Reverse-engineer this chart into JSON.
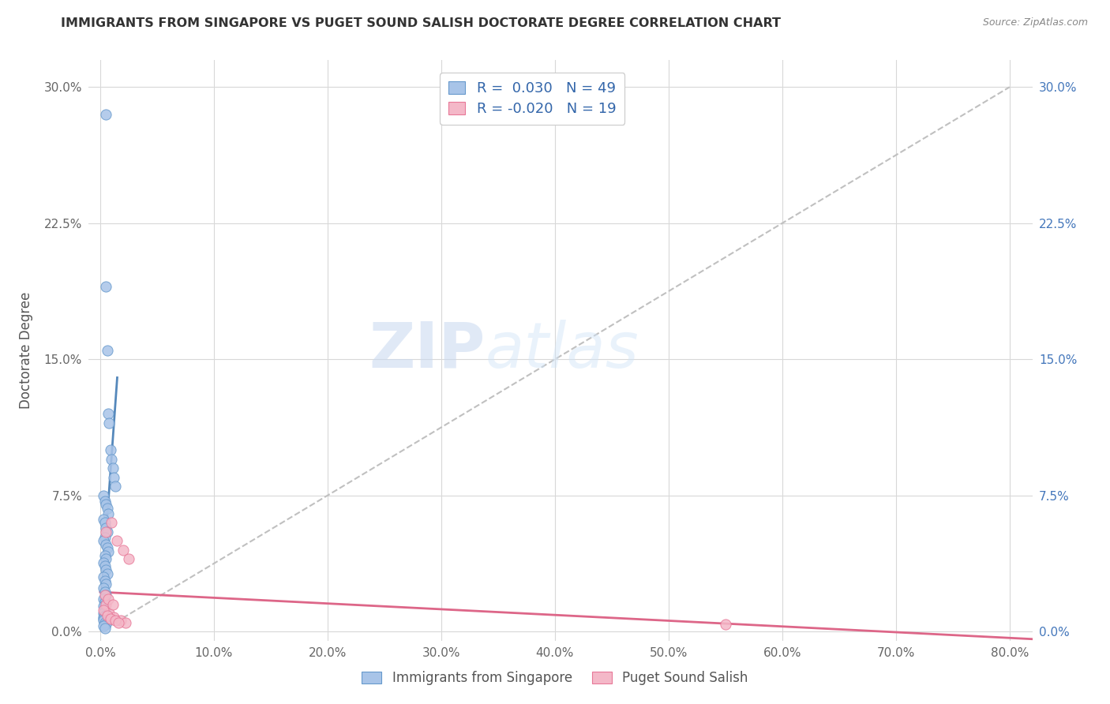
{
  "title": "IMMIGRANTS FROM SINGAPORE VS PUGET SOUND SALISH DOCTORATE DEGREE CORRELATION CHART",
  "source": "Source: ZipAtlas.com",
  "ylabel": "Doctorate Degree",
  "ytick_labels": [
    "0.0%",
    "7.5%",
    "15.0%",
    "22.5%",
    "30.0%"
  ],
  "ytick_values": [
    0.0,
    0.075,
    0.15,
    0.225,
    0.3
  ],
  "xtick_values": [
    0.0,
    0.1,
    0.2,
    0.3,
    0.4,
    0.5,
    0.6,
    0.7,
    0.8
  ],
  "xtick_labels": [
    "0.0%",
    "10.0%",
    "20.0%",
    "30.0%",
    "40.0%",
    "50.0%",
    "60.0%",
    "70.0%",
    "80.0%"
  ],
  "xlim": [
    -0.01,
    0.82
  ],
  "ylim": [
    -0.005,
    0.315
  ],
  "blue_color": "#a8c4e8",
  "blue_edge_color": "#6699cc",
  "pink_color": "#f4b8c8",
  "pink_edge_color": "#e87898",
  "trendline_blue_color": "#5588bb",
  "trendline_pink_color": "#dd6688",
  "trendline_gray_color": "#c0c0c0",
  "legend_blue_label": "Immigrants from Singapore",
  "legend_pink_label": "Puget Sound Salish",
  "R_blue": 0.03,
  "N_blue": 49,
  "R_pink": -0.02,
  "N_pink": 19,
  "blue_scatter_x": [
    0.005,
    0.005,
    0.006,
    0.007,
    0.008,
    0.009,
    0.01,
    0.011,
    0.012,
    0.013,
    0.003,
    0.004,
    0.005,
    0.006,
    0.007,
    0.003,
    0.004,
    0.005,
    0.006,
    0.004,
    0.003,
    0.005,
    0.006,
    0.007,
    0.004,
    0.005,
    0.003,
    0.004,
    0.005,
    0.006,
    0.003,
    0.004,
    0.005,
    0.003,
    0.004,
    0.005,
    0.003,
    0.004,
    0.003,
    0.004,
    0.003,
    0.004,
    0.003,
    0.003,
    0.003,
    0.004,
    0.005,
    0.003,
    0.004
  ],
  "blue_scatter_y": [
    0.285,
    0.19,
    0.155,
    0.12,
    0.115,
    0.1,
    0.095,
    0.09,
    0.085,
    0.08,
    0.075,
    0.072,
    0.07,
    0.068,
    0.065,
    0.062,
    0.06,
    0.057,
    0.055,
    0.052,
    0.05,
    0.048,
    0.046,
    0.044,
    0.042,
    0.04,
    0.038,
    0.036,
    0.034,
    0.032,
    0.03,
    0.028,
    0.026,
    0.024,
    0.022,
    0.02,
    0.018,
    0.016,
    0.014,
    0.012,
    0.01,
    0.009,
    0.008,
    0.007,
    0.006,
    0.005,
    0.004,
    0.003,
    0.002
  ],
  "pink_scatter_x": [
    0.005,
    0.01,
    0.015,
    0.02,
    0.025,
    0.005,
    0.008,
    0.012,
    0.018,
    0.022,
    0.003,
    0.006,
    0.009,
    0.013,
    0.016,
    0.55,
    0.004,
    0.007,
    0.011
  ],
  "pink_scatter_y": [
    0.055,
    0.06,
    0.05,
    0.045,
    0.04,
    0.015,
    0.01,
    0.008,
    0.006,
    0.005,
    0.012,
    0.009,
    0.007,
    0.006,
    0.005,
    0.004,
    0.02,
    0.018,
    0.015
  ],
  "watermark_zip": "ZIP",
  "watermark_atlas": "atlas",
  "background_color": "#ffffff",
  "grid_color": "#d8d8d8"
}
